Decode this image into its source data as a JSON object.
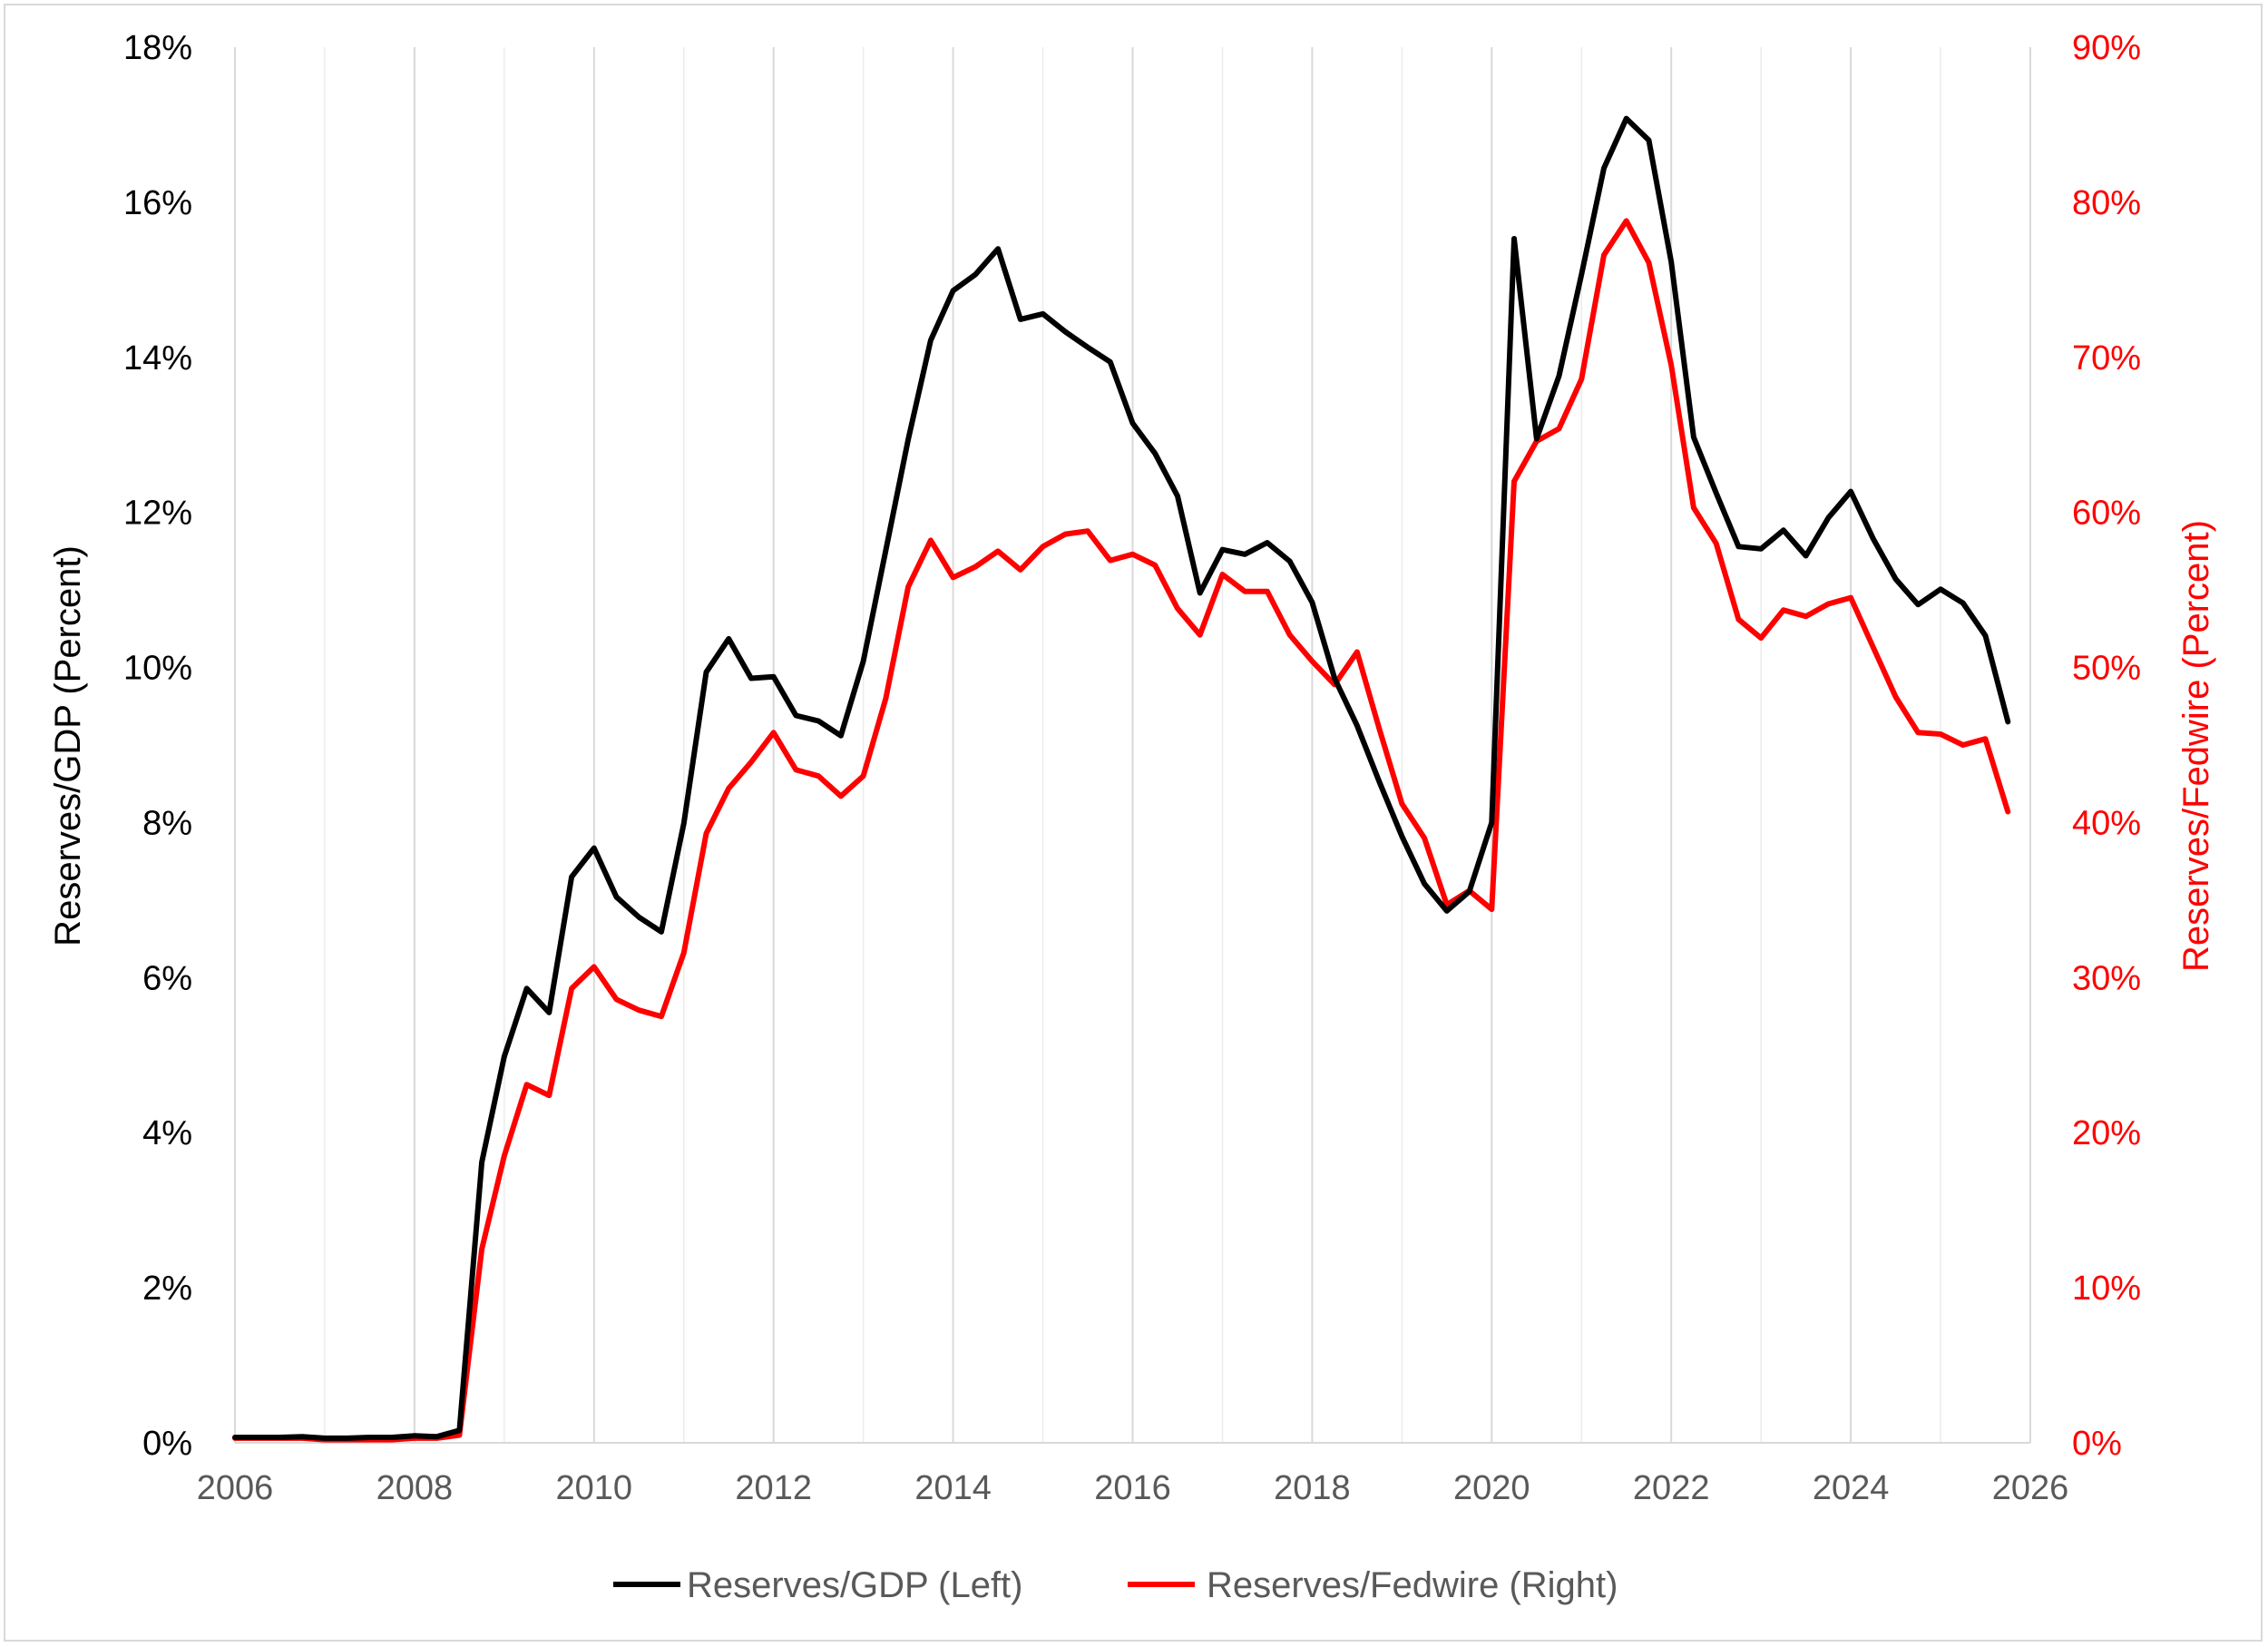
{
  "chart_data": {
    "type": "line",
    "title": "",
    "xlabel": "",
    "ylabel_left": "Reserves/GDP (Percent)",
    "ylabel_right": "Reserves/Fedwire (Percent)",
    "xlim": [
      2006,
      2026
    ],
    "ylim_left": [
      0,
      18
    ],
    "ylim_right": [
      0,
      90
    ],
    "x_ticks": [
      "2006",
      "2008",
      "2010",
      "2012",
      "2014",
      "2016",
      "2018",
      "2020",
      "2022",
      "2024",
      "2026"
    ],
    "y_left_ticks": [
      "0%",
      "2%",
      "4%",
      "6%",
      "8%",
      "10%",
      "12%",
      "14%",
      "16%",
      "18%"
    ],
    "y_right_ticks": [
      "0%",
      "10%",
      "20%",
      "30%",
      "40%",
      "50%",
      "60%",
      "70%",
      "80%",
      "90%"
    ],
    "grid": "vertical",
    "legend": "bottom",
    "x": [
      2006.0,
      2006.25,
      2006.5,
      2006.75,
      2007.0,
      2007.25,
      2007.5,
      2007.75,
      2008.0,
      2008.25,
      2008.5,
      2008.75,
      2009.0,
      2009.25,
      2009.5,
      2009.75,
      2010.0,
      2010.25,
      2010.5,
      2010.75,
      2011.0,
      2011.25,
      2011.5,
      2011.75,
      2012.0,
      2012.25,
      2012.5,
      2012.75,
      2013.0,
      2013.25,
      2013.5,
      2013.75,
      2014.0,
      2014.25,
      2014.5,
      2014.75,
      2015.0,
      2015.25,
      2015.5,
      2015.75,
      2016.0,
      2016.25,
      2016.5,
      2016.75,
      2017.0,
      2017.25,
      2017.5,
      2017.75,
      2018.0,
      2018.25,
      2018.5,
      2018.75,
      2019.0,
      2019.25,
      2019.5,
      2019.75,
      2020.0,
      2020.25,
      2020.5,
      2020.75,
      2021.0,
      2021.25,
      2021.5,
      2021.75,
      2022.0,
      2022.25,
      2022.5,
      2022.75,
      2023.0,
      2023.25,
      2023.5,
      2023.75,
      2024.0,
      2024.25,
      2024.5,
      2024.75,
      2025.0,
      2025.25,
      2025.5,
      2025.75
    ],
    "series": [
      {
        "name": "Reserves/GDP (Left)",
        "axis": "left",
        "color": "#000000",
        "values": [
          0.07,
          0.07,
          0.07,
          0.08,
          0.06,
          0.06,
          0.07,
          0.07,
          0.09,
          0.08,
          0.16,
          3.62,
          4.98,
          5.86,
          5.55,
          7.3,
          7.67,
          7.04,
          6.78,
          6.59,
          7.99,
          9.94,
          10.37,
          9.86,
          9.88,
          9.38,
          9.31,
          9.12,
          10.08,
          11.51,
          12.94,
          14.22,
          14.86,
          15.07,
          15.4,
          14.49,
          14.56,
          14.33,
          14.13,
          13.94,
          13.15,
          12.76,
          12.21,
          10.96,
          11.52,
          11.46,
          11.61,
          11.37,
          10.84,
          9.86,
          9.25,
          8.52,
          7.82,
          7.21,
          6.86,
          7.11,
          8.0,
          15.53,
          12.95,
          13.76,
          15.07,
          16.44,
          17.08,
          16.8,
          15.23,
          12.97,
          12.25,
          11.56,
          11.53,
          11.77,
          11.44,
          11.93,
          12.27,
          11.66,
          11.14,
          10.81,
          11.01,
          10.83,
          10.41,
          9.3
        ]
      },
      {
        "name": "Reserves/Fedwire (Right)",
        "axis": "right",
        "color": "#ff0000",
        "values": [
          0.3,
          0.3,
          0.3,
          0.3,
          0.2,
          0.2,
          0.2,
          0.2,
          0.3,
          0.3,
          0.5,
          12.5,
          18.5,
          23.1,
          22.4,
          29.3,
          30.7,
          28.6,
          27.9,
          27.5,
          31.6,
          39.3,
          42.2,
          43.9,
          45.8,
          43.4,
          43.0,
          41.7,
          43.0,
          48.0,
          55.2,
          58.2,
          55.8,
          56.5,
          57.5,
          56.3,
          57.8,
          58.6,
          58.8,
          56.9,
          57.3,
          56.6,
          53.8,
          52.1,
          56.0,
          54.9,
          54.9,
          52.1,
          50.4,
          48.9,
          51.0,
          46.0,
          41.2,
          39.0,
          34.7,
          35.6,
          34.4,
          62.0,
          64.6,
          65.4,
          68.6,
          76.6,
          78.8,
          76.1,
          69.5,
          60.3,
          58.0,
          53.1,
          51.9,
          53.7,
          53.3,
          54.1,
          54.5,
          51.3,
          48.1,
          45.8,
          45.7,
          45.0,
          45.4,
          40.7
        ]
      }
    ]
  }
}
